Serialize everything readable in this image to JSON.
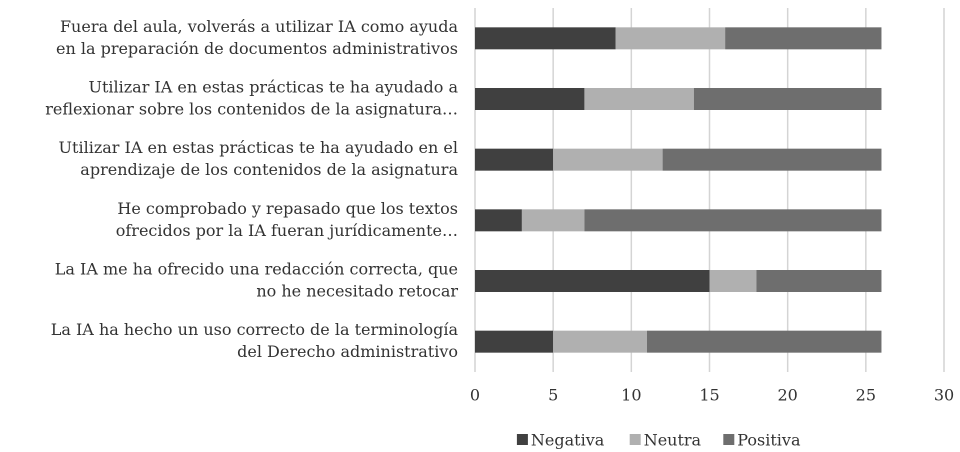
{
  "chart_data": {
    "type": "stacked-bar-horizontal",
    "categories": [
      [
        "Fuera del aula, volverás a utilizar IA como ayuda",
        "en la preparación de documentos administrativos"
      ],
      [
        "Utilizar IA en estas prácticas te ha ayudado a",
        "reflexionar sobre los contenidos de la asignatura…"
      ],
      [
        "Utilizar IA en estas prácticas te ha ayudado en el",
        "aprendizaje de los contenidos de la asignatura"
      ],
      [
        "He comprobado y repasado que los textos",
        "ofrecidos por la IA fueran jurídicamente…"
      ],
      [
        "La IA me ha ofrecido una redacción correcta, que",
        "no he necesitado retocar"
      ],
      [
        "La IA ha hecho un uso correcto de la terminología",
        "del Derecho administrativo"
      ]
    ],
    "series": [
      {
        "name": "Negativa",
        "color": "#404040",
        "values": [
          9,
          7,
          5,
          3,
          15,
          5
        ]
      },
      {
        "name": "Neutra",
        "color": "#b0b0b0",
        "values": [
          7,
          7,
          7,
          4,
          3,
          6
        ]
      },
      {
        "name": "Positiva",
        "color": "#6e6e6e",
        "values": [
          10,
          12,
          14,
          19,
          8,
          15
        ]
      }
    ],
    "xlim": [
      0,
      30
    ],
    "xticks": [
      0,
      5,
      10,
      15,
      20,
      25,
      30
    ],
    "grid": true,
    "legend": "bottom"
  }
}
